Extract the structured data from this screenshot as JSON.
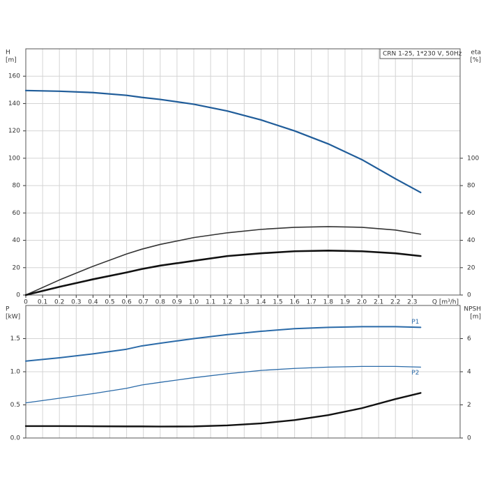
{
  "chart_data": [
    {
      "type": "line",
      "title": "CRN 1-25, 1*230 V, 50Hz",
      "ylabel": [
        "H",
        "[m]"
      ],
      "y2label": [
        "eta",
        "[%]"
      ],
      "xlabel": "Q [m³/h]",
      "x": [
        0,
        0.2,
        0.4,
        0.6,
        0.69,
        0.8,
        1.0,
        1.2,
        1.4,
        1.6,
        1.8,
        2.0,
        2.2,
        2.35
      ],
      "xlim": [
        0,
        2.585
      ],
      "xticks": [
        0,
        0.1,
        0.2,
        0.3,
        0.4,
        0.5,
        0.6,
        0.7,
        0.8,
        0.9,
        {
          "value": 1,
          "label": "1.0"
        },
        1.1,
        1.2,
        1.3,
        1.4,
        1.5,
        1.6,
        1.7,
        1.8,
        1.9,
        {
          "value": 2,
          "label": "2.0"
        },
        2.1,
        2.2,
        2.3
      ],
      "ylim": [
        0,
        180
      ],
      "yticks": [
        0,
        20,
        40,
        60,
        80,
        100,
        120,
        140,
        160
      ],
      "y2lim": [
        0,
        180
      ],
      "y2ticks": [
        0,
        20,
        40,
        60,
        80,
        100
      ],
      "grid": true,
      "series": [
        {
          "color": "#1f5c99",
          "line_width": 2.2,
          "values": [
            149.5,
            149,
            148,
            146,
            144.5,
            143,
            139.5,
            134.5,
            128,
            120,
            110.5,
            99,
            85,
            75
          ]
        },
        {
          "color": "#333333",
          "line_width": 1.6,
          "axis": "y2",
          "values": [
            0,
            11,
            21,
            30,
            33.5,
            37,
            42,
            45.5,
            48,
            49.5,
            50,
            49.5,
            47.5,
            44.5
          ]
        },
        {
          "color": "#111111",
          "line_width": 2.6,
          "axis": "y2",
          "values": [
            0,
            6,
            11.5,
            16.5,
            19,
            21.5,
            25,
            28.5,
            30.5,
            32,
            32.5,
            32,
            30.5,
            28.5
          ]
        }
      ]
    },
    {
      "type": "line",
      "ylabel": [
        "P",
        "[kW]"
      ],
      "y2label": [
        "NPSH",
        "[m]"
      ],
      "x": [
        0,
        0.2,
        0.4,
        0.6,
        0.69,
        0.8,
        1.0,
        1.2,
        1.4,
        1.6,
        1.8,
        2.0,
        2.2,
        2.35
      ],
      "xlim": [
        0,
        2.585
      ],
      "ylim": [
        0,
        2
      ],
      "yticks": [
        {
          "value": 0,
          "label": "0.0"
        },
        0.5,
        {
          "value": 1,
          "label": "1.0"
        },
        1.5
      ],
      "y2lim": [
        0,
        8
      ],
      "y2ticks": [
        0,
        2,
        4,
        6
      ],
      "grid": true,
      "series": [
        {
          "name": "P1",
          "color": "#2a6aa8",
          "line_width": 2,
          "values": [
            1.16,
            1.21,
            1.27,
            1.34,
            1.39,
            1.43,
            1.5,
            1.56,
            1.61,
            1.65,
            1.67,
            1.68,
            1.68,
            1.67
          ]
        },
        {
          "name": "P2",
          "color": "#2a6aa8",
          "line_width": 1.3,
          "values": [
            0.53,
            0.6,
            0.67,
            0.75,
            0.8,
            0.84,
            0.91,
            0.97,
            1.02,
            1.05,
            1.07,
            1.08,
            1.08,
            1.07
          ]
        },
        {
          "color": "#111111",
          "line_width": 2.4,
          "axis": "y2",
          "values": [
            0.72,
            0.72,
            0.71,
            0.7,
            0.7,
            0.69,
            0.7,
            0.76,
            0.88,
            1.08,
            1.38,
            1.8,
            2.35,
            2.72
          ]
        }
      ]
    }
  ]
}
